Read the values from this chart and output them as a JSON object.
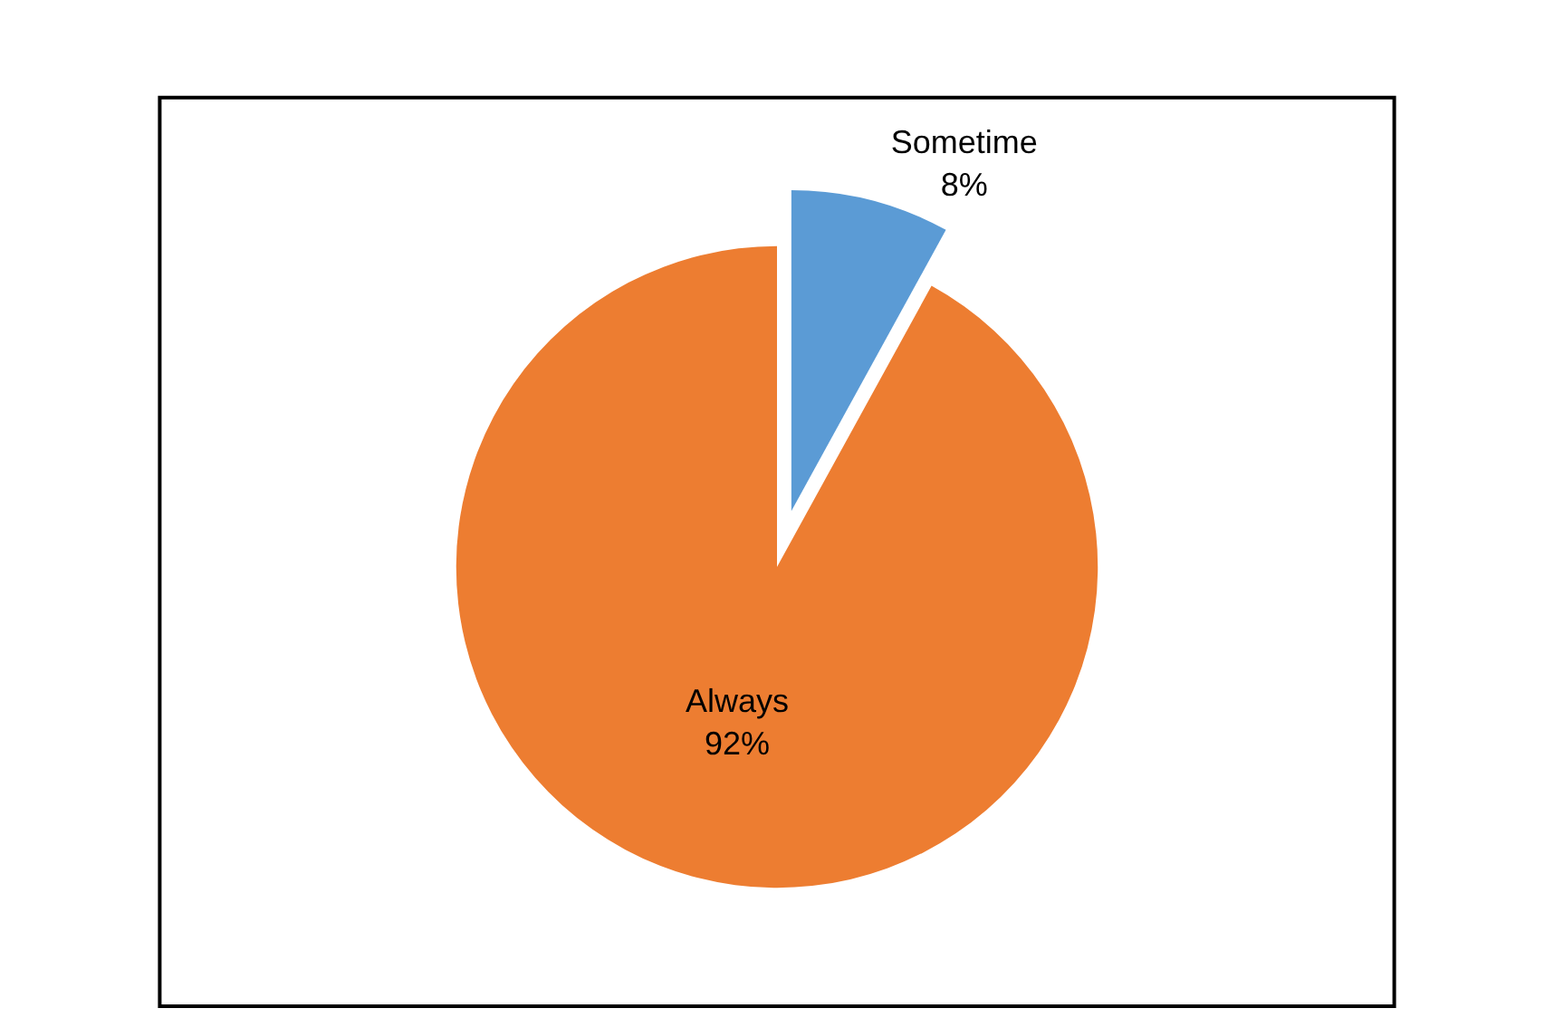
{
  "chart_data": {
    "type": "pie",
    "categories": [
      "Sometime",
      "Always"
    ],
    "values": [
      8,
      92
    ],
    "value_labels": [
      "8%",
      "92%"
    ],
    "colors": [
      "#5b9bd5",
      "#ed7d31"
    ]
  }
}
